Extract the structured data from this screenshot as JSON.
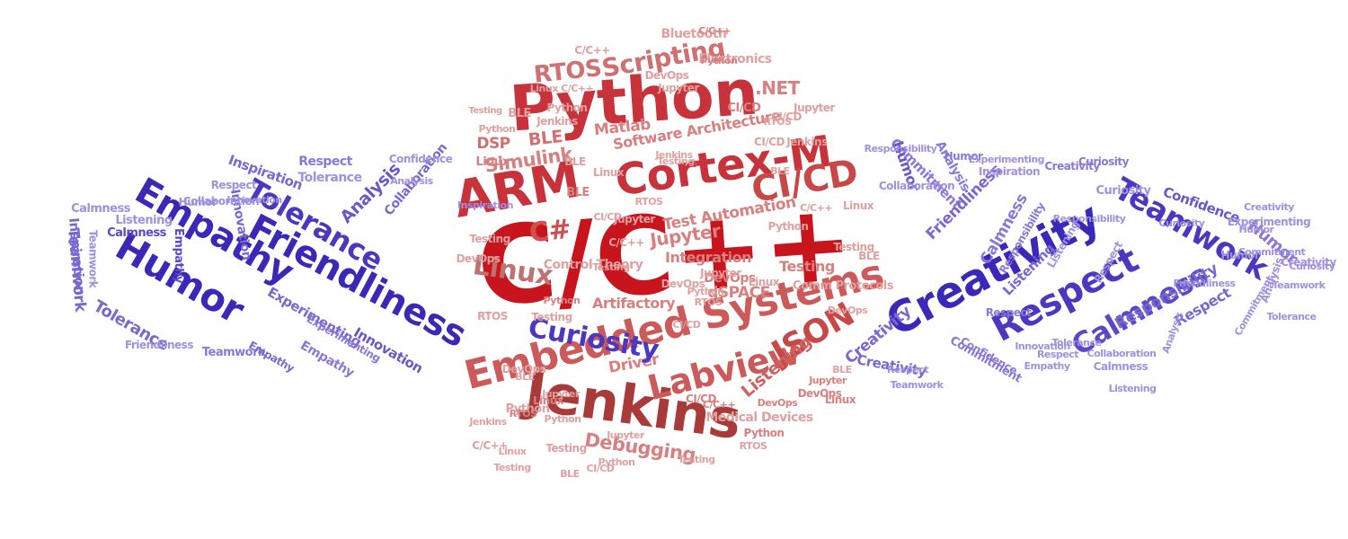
{
  "words": [
    {
      "text": "C/C++",
      "color": "#c8141c"
    },
    {
      "text": "Python",
      "color": "#c8323a"
    },
    {
      "text": "Cortex-M",
      "color": "#c8323a"
    },
    {
      "text": "ARM",
      "color": "#c8323a"
    },
    {
      "text": "Jenkins",
      "color": "#a83a3a"
    },
    {
      "text": "Embedded Systems",
      "color": "#cc5a5a"
    },
    {
      "text": "Labview",
      "color": "#cc5a5a"
    },
    {
      "text": "JSON",
      "color": "#c84848"
    },
    {
      "text": "CI/CD",
      "color": "#c84848"
    },
    {
      "text": "Scripting",
      "color": "#d07070"
    },
    {
      "text": "RTOS",
      "color": "#d07070"
    },
    {
      "text": "Linux",
      "color": "#c07070"
    },
    {
      "text": "C#",
      "color": "#d05050"
    },
    {
      "text": "Simulink",
      "color": "#d88080"
    },
    {
      "text": "Debugging",
      "color": "#d88080"
    },
    {
      "text": "DSP",
      "color": "#d07070"
    },
    {
      "text": "BLE",
      "color": "#d07070"
    },
    {
      "text": "Matlab",
      "color": "#d88080"
    },
    {
      "text": "Software Architecture",
      "color": "#d88080"
    },
    {
      "text": ".NET",
      "color": "#d88080"
    },
    {
      "text": "Bluetooth",
      "color": "#e0a0a0"
    },
    {
      "text": "Electronics",
      "color": "#e0a0a0"
    },
    {
      "text": "Jupyter",
      "color": "#d88080"
    },
    {
      "text": "Test Automation",
      "color": "#d88080"
    },
    {
      "text": "Integration",
      "color": "#d88080"
    },
    {
      "text": "DevOps",
      "color": "#d88080"
    },
    {
      "text": "dSPACE",
      "color": "#d88080"
    },
    {
      "text": "Testing",
      "color": "#d88080"
    },
    {
      "text": "Artifactory",
      "color": "#d88080"
    },
    {
      "text": "Driver",
      "color": "#d88080"
    },
    {
      "text": "Listening",
      "color": "#d06060"
    },
    {
      "text": "Medical Devices",
      "color": "#e0a0a0"
    },
    {
      "text": "Comm Protocols",
      "color": "#e0a0a0"
    },
    {
      "text": "Control Theory",
      "color": "#e0a0a0"
    },
    {
      "text": "Friendliness",
      "color": "#3a28b8"
    },
    {
      "text": "Humor",
      "color": "#3a28b8"
    },
    {
      "text": "Empathy",
      "color": "#3a28b8"
    },
    {
      "text": "Tolerance",
      "color": "#4a38c0"
    },
    {
      "text": "Curiosity",
      "color": "#4a38c0"
    },
    {
      "text": "Creativity",
      "color": "#3a28b8"
    },
    {
      "text": "Teamwork",
      "color": "#4a38c0"
    },
    {
      "text": "Respect",
      "color": "#4a38c0"
    },
    {
      "text": "Calmness",
      "color": "#5a48c8"
    },
    {
      "text": "Confidence",
      "color": "#6a58c8"
    },
    {
      "text": "Responsibility",
      "color": "#7a68d0"
    },
    {
      "text": "Innovation",
      "color": "#6a58c8"
    },
    {
      "text": "Analysis",
      "color": "#6a58c8"
    },
    {
      "text": "Inspiration",
      "color": "#7a68d0"
    },
    {
      "text": "Collaboration",
      "color": "#7a68d0"
    },
    {
      "text": "Experimenting",
      "color": "#7a68d0"
    },
    {
      "text": "Commitment",
      "color": "#8a78d8"
    },
    {
      "text": "Listening",
      "color": "#7a68d0"
    },
    {
      "text": "Friendliness",
      "color": "#7a68d0"
    },
    {
      "text": "Humor",
      "color": "#6a58c8"
    },
    {
      "text": "Respect",
      "color": "#8a78d8"
    },
    {
      "text": "Teamwork",
      "color": "#7a68d0"
    },
    {
      "text": "Inspiration",
      "color": "#7a68d0"
    },
    {
      "text": "Tolerance",
      "color": "#7a68d0"
    },
    {
      "text": "Respect",
      "color": "#7a68d0"
    },
    {
      "text": "Empathy",
      "color": "#8a78d8"
    },
    {
      "text": "Innovation",
      "color": "#7a68d0"
    },
    {
      "text": "Humor",
      "color": "#8a78d8"
    },
    {
      "text": "Teamwork",
      "color": "#8a78d8"
    },
    {
      "text": "Experimenting",
      "color": "#8a78d8"
    },
    {
      "text": "Commitment",
      "color": "#8a78d8"
    },
    {
      "text": "Humor",
      "color": "#8a78d8"
    },
    {
      "text": "Analysis",
      "color": "#8a78d8"
    },
    {
      "text": "Creativity",
      "color": "#8a78d8"
    },
    {
      "text": "Curiosity",
      "color": "#8a78d8"
    },
    {
      "text": "Confidence",
      "color": "#8a78d8"
    },
    {
      "text": "Respect",
      "color": "#8a78d8"
    },
    {
      "text": "Creativity",
      "color": "#7a68d0"
    },
    {
      "text": "Responsibility",
      "color": "#8a78d8"
    },
    {
      "text": "Empathy",
      "color": "#7a68d0"
    },
    {
      "text": "Calmness",
      "color": "#8a78d8"
    },
    {
      "text": "Curiosity",
      "color": "#a090e0"
    },
    {
      "text": "Listening",
      "color": "#a090e0"
    },
    {
      "text": "Respect",
      "color": "#a090e0"
    },
    {
      "text": "Analysis",
      "color": "#a090e0"
    },
    {
      "text": "Creativity",
      "color": "#7a68d0"
    },
    {
      "text": "Empathy",
      "color": "#5a48c8"
    },
    {
      "text": "Calmness",
      "color": "#5a48c8"
    },
    {
      "text": "Python",
      "color": "#e0a0a0"
    },
    {
      "text": "Jenkins",
      "color": "#e0a0a0"
    },
    {
      "text": "Linux C/C++",
      "color": "#e0a0a0"
    },
    {
      "text": "Testing",
      "color": "#e0a0a0"
    },
    {
      "text": "BLE",
      "color": "#e0a0a0"
    },
    {
      "text": "C/C++",
      "color": "#e0a0a0"
    },
    {
      "text": "CI/CD",
      "color": "#e0a0a0"
    },
    {
      "text": "RTOS",
      "color": "#e0a0a0"
    },
    {
      "text": "Python",
      "color": "#d88080"
    },
    {
      "text": "C/C++",
      "color": "#d88080"
    },
    {
      "text": "CI/CD",
      "color": "#d88080"
    },
    {
      "text": "Linux",
      "color": "#d88080"
    },
    {
      "text": "Jupyter",
      "color": "#e0a0a0"
    },
    {
      "text": "DevOps",
      "color": "#e0a0a0"
    },
    {
      "text": "Python",
      "color": "#e0a0a0"
    },
    {
      "text": "BLE",
      "color": "#e0a0a0"
    },
    {
      "text": "Testing",
      "color": "#e0a0a0"
    },
    {
      "text": "Jenkins",
      "color": "#e0a0a0"
    },
    {
      "text": "RTOS",
      "color": "#e0a0a0"
    },
    {
      "text": "BLE",
      "color": "#d88080"
    },
    {
      "text": "Linux",
      "color": "#e0a0a0"
    },
    {
      "text": "Jupyter",
      "color": "#e0a0a0"
    },
    {
      "text": "C/C++",
      "color": "#e0a0a0"
    },
    {
      "text": "CI/CD",
      "color": "#e0a0a0"
    },
    {
      "text": "Testing",
      "color": "#e0a0a0"
    },
    {
      "text": "DevOps",
      "color": "#e0a0a0"
    },
    {
      "text": "Python",
      "color": "#e0a0a0"
    },
    {
      "text": "RTOS",
      "color": "#e0a0a0"
    },
    {
      "text": "Jupyter",
      "color": "#e0a0a0"
    },
    {
      "text": "CI/CD",
      "color": "#e0a0a0"
    },
    {
      "text": "Linux",
      "color": "#e0a0a0"
    },
    {
      "text": "BLE",
      "color": "#e0a0a0"
    },
    {
      "text": "Testing",
      "color": "#e0a0a0"
    },
    {
      "text": "DevOps",
      "color": "#e0a0a0"
    },
    {
      "text": "Python",
      "color": "#e0a0a0"
    },
    {
      "text": "C/C++",
      "color": "#e0a0a0"
    },
    {
      "text": "CI/CD",
      "color": "#e0a0a0"
    },
    {
      "text": "BLE",
      "color": "#e0a0a0"
    },
    {
      "text": "Jenkins",
      "color": "#e0a0a0"
    },
    {
      "text": "Jupyter",
      "color": "#e0a0a0"
    },
    {
      "text": "Linux",
      "color": "#e0a0a0"
    },
    {
      "text": "RTOS",
      "color": "#e0a0a0"
    },
    {
      "text": "Testing",
      "color": "#e0a0a0"
    },
    {
      "text": "DevOps",
      "color": "#e0a0a0"
    },
    {
      "text": "Python",
      "color": "#e0a0a0"
    },
    {
      "text": "Linux",
      "color": "#d88080"
    },
    {
      "text": "Jupyter",
      "color": "#e0a0a0"
    },
    {
      "text": "DevOps",
      "color": "#e0a0a0"
    },
    {
      "text": "Testing",
      "color": "#e0a0a0"
    },
    {
      "text": "Python",
      "color": "#d88080"
    },
    {
      "text": "C/C++",
      "color": "#d88080"
    },
    {
      "text": "CI/CD",
      "color": "#d88080"
    },
    {
      "text": "DevOps",
      "color": "#d88080"
    },
    {
      "text": "Python",
      "color": "#d88080"
    },
    {
      "text": "RTOS",
      "color": "#e0a0a0"
    },
    {
      "text": "Testing",
      "color": "#e0a0a0"
    },
    {
      "text": "BLE",
      "color": "#e0a0a0"
    },
    {
      "text": "RTOS",
      "color": "#d88080"
    },
    {
      "text": "DevOps",
      "color": "#d88080"
    },
    {
      "text": "Jupyter",
      "color": "#d88080"
    },
    {
      "text": "Linux",
      "color": "#d88080"
    },
    {
      "text": "BLE",
      "color": "#e0a0a0"
    },
    {
      "text": "Testing",
      "color": "#e0a0a0"
    },
    {
      "text": "Python",
      "color": "#e0a0a0"
    },
    {
      "text": "CI/CD",
      "color": "#e0a0a0"
    },
    {
      "text": "Jupyter",
      "color": "#e0a0a0"
    },
    {
      "text": "Linux",
      "color": "#e0a0a0"
    },
    {
      "text": "C/C++",
      "color": "#e0a0a0"
    },
    {
      "text": "Testing",
      "color": "#e0a0a0"
    },
    {
      "text": "BLE",
      "color": "#e0a0a0"
    },
    {
      "text": "Jenkins",
      "color": "#e0a0a0"
    },
    {
      "text": "Python",
      "color": "#e0a0a0"
    },
    {
      "text": "Inspiration",
      "color": "#a090e0"
    },
    {
      "text": "Teamwork",
      "color": "#a090e0"
    },
    {
      "text": "Calmness",
      "color": "#a090e0"
    },
    {
      "text": "Listening",
      "color": "#a090e0"
    },
    {
      "text": "Respect",
      "color": "#a090e0"
    },
    {
      "text": "Tolerance",
      "color": "#a090e0"
    },
    {
      "text": "Friendliness",
      "color": "#a090e0"
    },
    {
      "text": "Innovation",
      "color": "#a090e0"
    },
    {
      "text": "Collaboration",
      "color": "#a090e0"
    },
    {
      "text": "Humor",
      "color": "#a090e0"
    },
    {
      "text": "Confidence",
      "color": "#a090e0"
    },
    {
      "text": "Analysis",
      "color": "#a090e0"
    },
    {
      "text": "Commitment",
      "color": "#a090e0"
    },
    {
      "text": "Inspiration",
      "color": "#a090e0"
    },
    {
      "text": "Creativity",
      "color": "#a090e0"
    },
    {
      "text": "Experimenting",
      "color": "#a090e0"
    },
    {
      "text": "Collaboration",
      "color": "#a090e0"
    },
    {
      "text": "Responsibility",
      "color": "#a090e0"
    },
    {
      "text": "Empathy",
      "color": "#a090e0"
    },
    {
      "text": "Friendliness",
      "color": "#a090e0"
    },
    {
      "text": "Curiosity",
      "color": "#a090e0"
    },
    {
      "text": "Humor",
      "color": "#a090e0"
    },
    {
      "text": "Teamwork",
      "color": "#a090e0"
    },
    {
      "text": "Commitment",
      "color": "#a090e0"
    },
    {
      "text": "Tolerance",
      "color": "#a090e0"
    },
    {
      "text": "Respect",
      "color": "#a090e0"
    },
    {
      "text": "Analysis",
      "color": "#a090e0"
    },
    {
      "text": "Innovation",
      "color": "#a090e0"
    },
    {
      "text": "Calmness",
      "color": "#a090e0"
    },
    {
      "text": "Experimenting",
      "color": "#a090e0"
    },
    {
      "text": "Responsibility",
      "color": "#a090e0"
    },
    {
      "text": "Collaboration",
      "color": "#a090e0"
    },
    {
      "text": "Listening",
      "color": "#a090e0"
    },
    {
      "text": "Humor",
      "color": "#a090e0"
    },
    {
      "text": "Creativity",
      "color": "#a090e0"
    },
    {
      "text": "Curiosity",
      "color": "#a090e0"
    },
    {
      "text": "Tolerance",
      "color": "#a090e0"
    },
    {
      "text": "Teamwork",
      "color": "#a090e0"
    },
    {
      "text": "Respect",
      "color": "#a090e0"
    }
  ]
}
